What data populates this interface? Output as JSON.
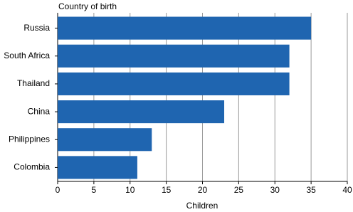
{
  "chart_data": {
    "type": "bar",
    "orientation": "horizontal",
    "y_axis_label": "Country of birth",
    "x_axis_label": "Children",
    "categories": [
      "Russia",
      "South Africa",
      "Thailand",
      "China",
      "Philippines",
      "Colombia"
    ],
    "values": [
      35,
      32,
      32,
      23,
      13,
      11
    ],
    "color": "#1f65b0",
    "xlim": [
      0,
      40
    ],
    "xticks": [
      0,
      5,
      10,
      15,
      20,
      25,
      30,
      35,
      40
    ],
    "grid": true
  }
}
